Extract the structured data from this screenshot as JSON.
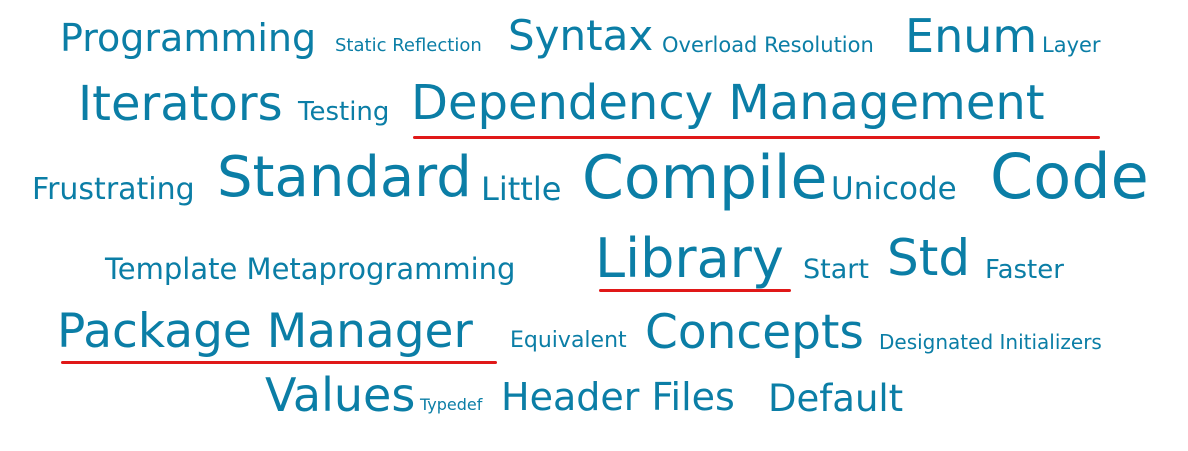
{
  "cloud": {
    "text_color": "#0b7ea6",
    "underline_color": "#e01818",
    "underlined_words": [
      "Dependency Management",
      "Library",
      "Package Manager"
    ],
    "words": [
      "Programming",
      "Static Reflection",
      "Syntax",
      "Overload Resolution",
      "Enum",
      "Layer",
      "Iterators",
      "Testing",
      "Dependency Management",
      "Frustrating",
      "Standard",
      "Little",
      "Compile",
      "Unicode",
      "Code",
      "Template Metaprogramming",
      "Library",
      "Start",
      "Std",
      "Faster",
      "Package Manager",
      "Equivalent",
      "Concepts",
      "Designated Initializers",
      "Values",
      "Typedef",
      "Header Files",
      "Default"
    ]
  }
}
